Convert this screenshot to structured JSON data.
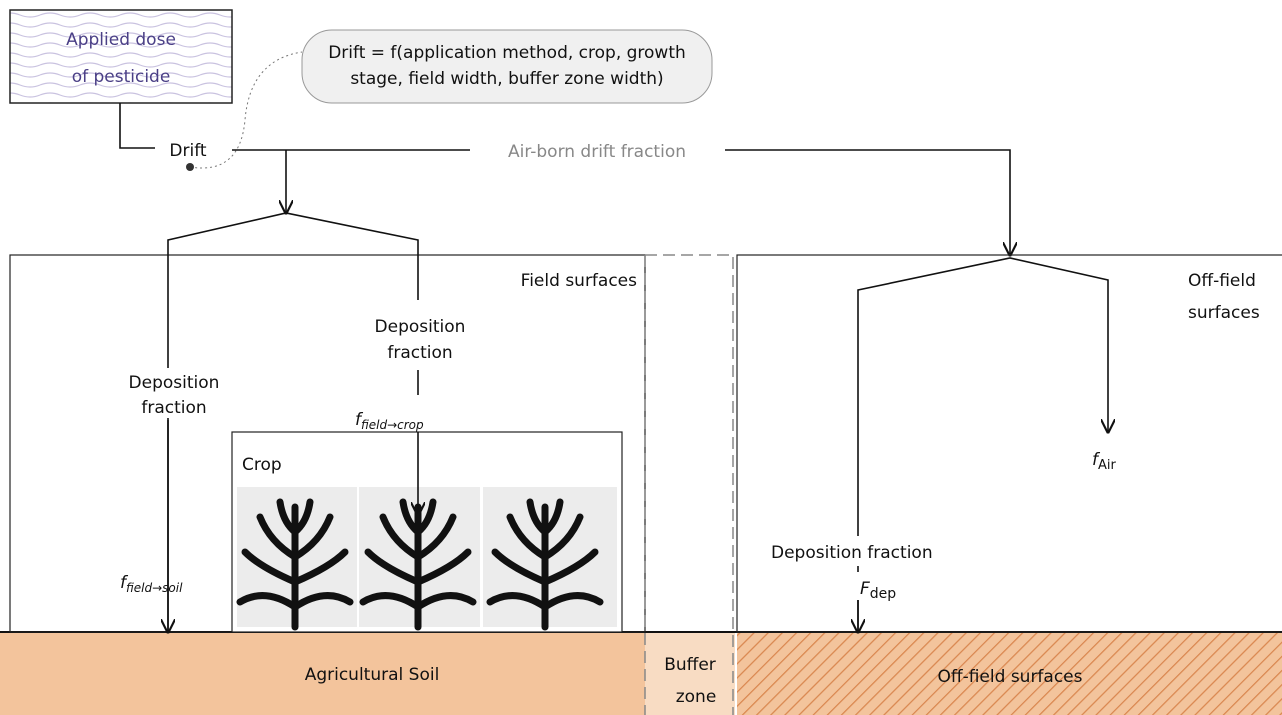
{
  "source_box": {
    "lines": [
      "Applied dose",
      "of pesticide"
    ]
  },
  "callout": {
    "lines": [
      "Drift = f(application method, crop, growth",
      "stage, field width, buffer zone width)"
    ]
  },
  "drift_label": "Drift",
  "airborne_label": "Air-born drift fraction",
  "field": {
    "title": "Field surfaces",
    "left_deposition": [
      "Deposition",
      "fraction"
    ],
    "mid_deposition": [
      "Deposition",
      "fraction"
    ],
    "f_crop": {
      "symbol": "f",
      "subscript": "field→crop"
    },
    "f_soil": {
      "symbol": "f",
      "subscript": "field→soil"
    },
    "crop_label": "Crop"
  },
  "offfield": {
    "title": [
      "Off-field",
      "surfaces"
    ],
    "f_air": {
      "symbol": "f",
      "subscript": "Air"
    },
    "deposition": "Deposition fraction",
    "f_dep": {
      "symbol": "F",
      "subscript": "dep"
    }
  },
  "ground": {
    "soil": "Agricultural Soil",
    "buffer": [
      "Buffer",
      "zone"
    ],
    "offfield": "Off-field surfaces"
  }
}
